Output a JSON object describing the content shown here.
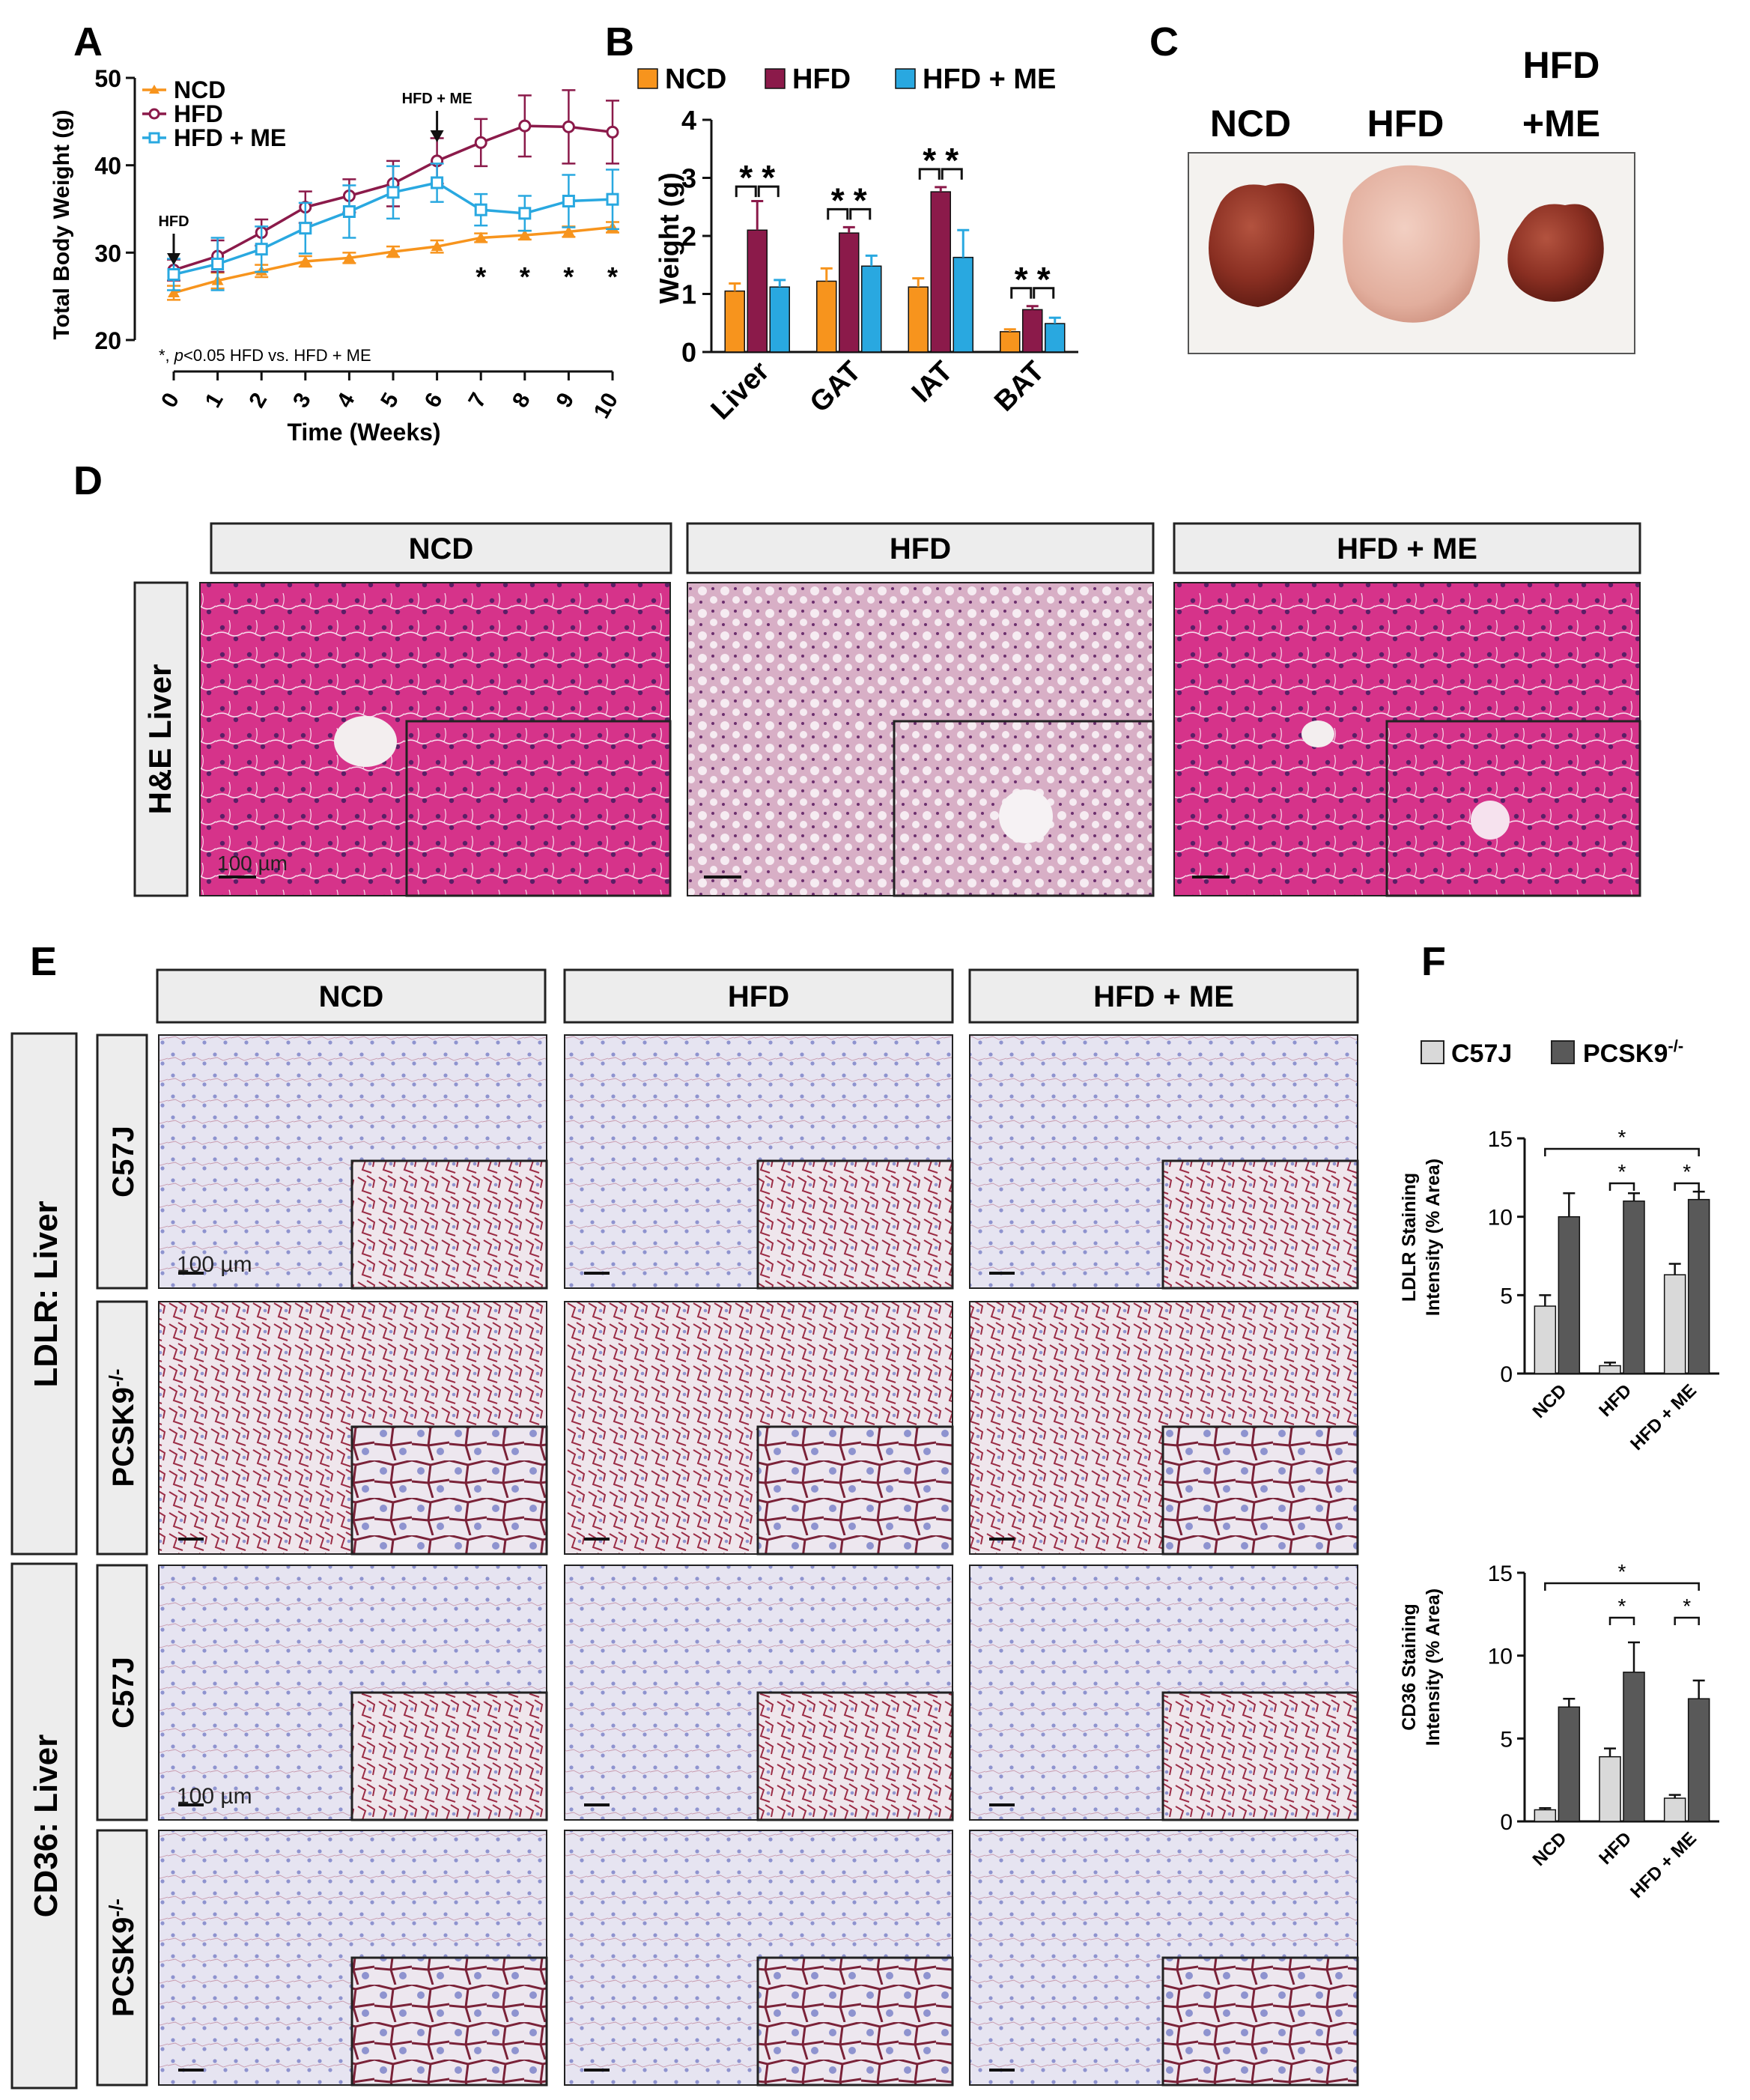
{
  "colors": {
    "ncd": "#F7941D",
    "hfd": "#8B1A4A",
    "hfd_me": "#29A8E0",
    "c57j": "#D9D9D9",
    "pcsk9": "#595959",
    "he_pink": "#D6338A",
    "he_pale": "#C98FB2",
    "ihc_blue": "#B7BEDD",
    "ihc_red": "#9B2C45",
    "label_bg": "#EDEDED"
  },
  "panels": {
    "a": "A",
    "b": "B",
    "c": "C",
    "d": "D",
    "e": "E",
    "f": "F"
  },
  "panel_c": {
    "labels": [
      "NCD",
      "HFD",
      "HFD",
      "+ME"
    ]
  },
  "panel_d": {
    "headers": [
      "NCD",
      "HFD",
      "HFD + ME"
    ],
    "row_label": "H&E Liver",
    "scale_label": "100 µm"
  },
  "panel_e": {
    "headers": [
      "NCD",
      "HFD",
      "HFD + ME"
    ],
    "group_labels": [
      "LDLR: Liver",
      "CD36: Liver"
    ],
    "row_labels": [
      "C57J",
      "PCSK9",
      "C57J",
      "PCSK9"
    ],
    "row_label_sup": "-/-",
    "scale_label": "100 µm"
  },
  "chart_data": [
    {
      "id": "A",
      "type": "line",
      "ylabel": "Total Body Weight (g)",
      "xlabel": "Time (Weeks)",
      "x": [
        0,
        1,
        2,
        3,
        4,
        5,
        6,
        7,
        8,
        9,
        10
      ],
      "xtick_labels": [
        "0",
        "1",
        "2",
        "3",
        "4",
        "5",
        "6",
        "7",
        "8",
        "9",
        "10"
      ],
      "ylim": [
        20,
        50
      ],
      "yticks": [
        20,
        30,
        40,
        50
      ],
      "series": [
        {
          "name": "NCD",
          "color_key": "ncd",
          "marker": "triangle",
          "values": [
            25.4,
            26.8,
            27.9,
            29.0,
            29.4,
            30.1,
            30.7,
            31.7,
            32.0,
            32.4,
            32.9
          ],
          "errors": [
            0.8,
            0.9,
            0.7,
            0.6,
            0.6,
            0.6,
            0.7,
            0.5,
            0.5,
            0.6,
            0.6
          ]
        },
        {
          "name": "HFD",
          "color_key": "hfd",
          "marker": "circle",
          "values": [
            28.0,
            29.6,
            32.3,
            35.2,
            36.5,
            37.9,
            40.5,
            42.6,
            44.5,
            44.4,
            43.8
          ],
          "errors": [
            1.2,
            1.8,
            1.5,
            1.8,
            1.9,
            2.6,
            2.6,
            2.7,
            3.5,
            4.2,
            3.6
          ]
        },
        {
          "name": "HFD + ME",
          "color_key": "hfd_me",
          "marker": "square",
          "values": [
            27.5,
            28.7,
            30.4,
            32.8,
            34.7,
            36.9,
            38.0,
            34.9,
            34.5,
            35.9,
            36.1
          ],
          "errors": [
            1.8,
            3.0,
            2.6,
            2.9,
            3.0,
            3.0,
            2.2,
            1.8,
            2.0,
            3.0,
            3.4
          ]
        }
      ],
      "annotations": [
        {
          "text": "HFD",
          "x": 0
        },
        {
          "text": "HFD + ME",
          "x": 6
        }
      ],
      "significance": {
        "symbol": "*",
        "x": [
          7,
          8,
          9,
          10
        ]
      },
      "footnote_star": "*, ",
      "footnote_p": "p",
      "footnote_rest": "<0.05 HFD vs. HFD + ME"
    },
    {
      "id": "B",
      "type": "bar",
      "ylabel": "Weight  (g)",
      "categories": [
        "Liver",
        "GAT",
        "IAT",
        "BAT"
      ],
      "ylim": [
        0,
        4
      ],
      "yticks": [
        0,
        1,
        2,
        3,
        4
      ],
      "series": [
        {
          "name": "NCD",
          "color_key": "ncd",
          "values": [
            1.05,
            1.22,
            1.12,
            0.35
          ],
          "errors": [
            0.13,
            0.22,
            0.15,
            0.04
          ]
        },
        {
          "name": "HFD",
          "color_key": "hfd",
          "values": [
            2.1,
            2.05,
            2.76,
            0.73
          ],
          "errors": [
            0.5,
            0.1,
            0.08,
            0.06
          ]
        },
        {
          "name": "HFD + ME",
          "color_key": "hfd_me",
          "values": [
            1.12,
            1.48,
            1.63,
            0.49
          ],
          "errors": [
            0.12,
            0.18,
            0.47,
            0.1
          ]
        }
      ],
      "significance": {
        "symbol": "*",
        "pairs_per_category": [
          [
            0,
            1
          ],
          [
            1,
            2
          ]
        ]
      }
    },
    {
      "id": "F1",
      "type": "bar",
      "ylabel": [
        "LDLR Staining",
        "Intensity (% Area)"
      ],
      "categories": [
        "NCD",
        "HFD",
        "HFD + ME"
      ],
      "ylim": [
        0,
        15
      ],
      "yticks": [
        0,
        5,
        10,
        15
      ],
      "legend": [
        "C57J",
        "PCSK9"
      ],
      "legend_sup": "-/-",
      "series": [
        {
          "name": "C57J",
          "color_key": "c57j",
          "values": [
            4.3,
            0.5,
            6.3
          ],
          "errors": [
            0.7,
            0.2,
            0.7
          ]
        },
        {
          "name": "PCSK9-/-",
          "color_key": "pcsk9",
          "values": [
            10.0,
            11.0,
            11.1
          ],
          "errors": [
            1.5,
            0.5,
            0.5
          ]
        }
      ],
      "significance": {
        "symbol": "*",
        "brackets": [
          {
            "from": [
              0,
              0
            ],
            "to": [
              2,
              1
            ],
            "level": 3
          },
          {
            "from": [
              1,
              0
            ],
            "to": [
              1,
              1
            ],
            "level": 1
          },
          {
            "from": [
              2,
              0
            ],
            "to": [
              2,
              1
            ],
            "level": 1
          }
        ]
      }
    },
    {
      "id": "F2",
      "type": "bar",
      "ylabel": [
        "CD36 Staining",
        "Intensity (% Area)"
      ],
      "categories": [
        "NCD",
        "HFD",
        "HFD + ME"
      ],
      "ylim": [
        0,
        15
      ],
      "yticks": [
        0,
        5,
        10,
        15
      ],
      "series": [
        {
          "name": "C57J",
          "color_key": "c57j",
          "values": [
            0.7,
            3.9,
            1.4
          ],
          "errors": [
            0.1,
            0.5,
            0.2
          ]
        },
        {
          "name": "PCSK9-/-",
          "color_key": "pcsk9",
          "values": [
            6.9,
            9.0,
            7.4
          ],
          "errors": [
            0.5,
            1.8,
            1.1
          ]
        }
      ],
      "significance": {
        "symbol": "*",
        "brackets": [
          {
            "from": [
              0,
              0
            ],
            "to": [
              2,
              1
            ],
            "level": 3
          },
          {
            "from": [
              1,
              0
            ],
            "to": [
              1,
              1
            ],
            "level": 1
          },
          {
            "from": [
              2,
              0
            ],
            "to": [
              2,
              1
            ],
            "level": 1
          }
        ]
      }
    }
  ]
}
